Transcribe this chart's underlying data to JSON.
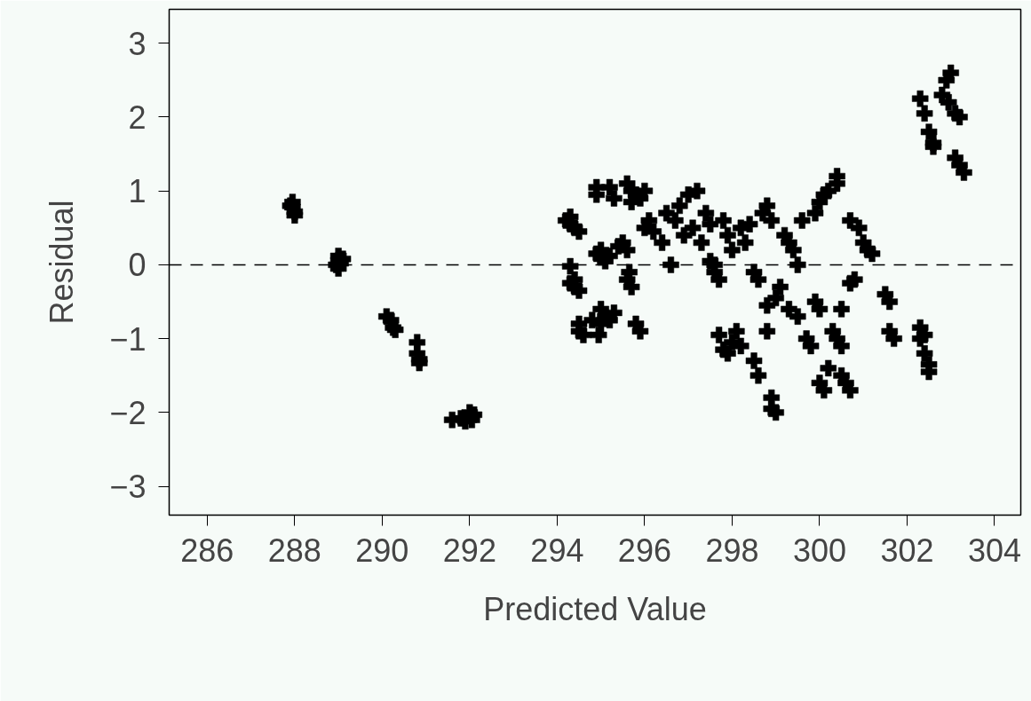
{
  "chart_data": {
    "type": "scatter",
    "xlabel": "Predicted Value",
    "ylabel": "Residual",
    "marker": "cross",
    "grid": false,
    "color": "#000000",
    "xlim": [
      285.13,
      304.6
    ],
    "ylim": [
      -3.39,
      3.46
    ],
    "xticks": [
      286,
      288,
      290,
      292,
      294,
      296,
      298,
      300,
      302,
      304
    ],
    "yticks": [
      {
        "value": -3,
        "label": "−3"
      },
      {
        "value": -2,
        "label": "−2"
      },
      {
        "value": -1,
        "label": "−1"
      },
      0,
      1,
      2,
      3
    ],
    "ref_lines": [
      {
        "axis": "y",
        "value": 0,
        "label": null,
        "line_style": "dashed",
        "color": "#000000"
      }
    ],
    "x": [
      287.95,
      287.95,
      288.0,
      288.0,
      287.9,
      289.0,
      289.0,
      289.05,
      288.95,
      289.0,
      289.1,
      290.1,
      290.2,
      290.25,
      290.3,
      290.8,
      290.8,
      290.85,
      290.85,
      291.6,
      291.8,
      292.0,
      292.05,
      292.1,
      291.9,
      294.2,
      294.3,
      294.4,
      294.5,
      294.3,
      294.3,
      294.4,
      294.5,
      294.4,
      294.3,
      294.5,
      294.5,
      294.6,
      294.8,
      294.9,
      294.9,
      295.2,
      295.3,
      294.9,
      295.0,
      295.1,
      295.2,
      295.0,
      295.0,
      295.1,
      295.2,
      295.3,
      294.95,
      295.0,
      295.6,
      295.7,
      295.65,
      295.8,
      295.9,
      295.5,
      295.6,
      295.4,
      295.7,
      295.8,
      295.9,
      296.0,
      295.7,
      295.6,
      296.0,
      296.1,
      296.2,
      296.4,
      296.5,
      296.6,
      296.7,
      296.8,
      296.9,
      297.0,
      297.1,
      297.2,
      297.3,
      297.4,
      297.5,
      297.6,
      297.5,
      297.7,
      297.6,
      297.8,
      297.9,
      298.0,
      298.2,
      298.3,
      298.4,
      298.5,
      298.6,
      298.7,
      298.8,
      298.9,
      297.7,
      297.8,
      297.9,
      298.0,
      298.1,
      298.2,
      298.5,
      298.6,
      298.8,
      298.9,
      298.9,
      299.0,
      298.8,
      299.0,
      299.1,
      299.2,
      299.3,
      299.4,
      299.5,
      299.3,
      299.5,
      299.6,
      299.7,
      299.8,
      299.9,
      300.0,
      299.9,
      300.0,
      300.1,
      300.2,
      300.4,
      300.4,
      300.0,
      300.1,
      300.2,
      300.3,
      300.4,
      300.5,
      300.5,
      300.6,
      300.7,
      300.5,
      300.7,
      300.8,
      300.7,
      300.9,
      301.0,
      301.1,
      301.2,
      301.5,
      301.6,
      301.6,
      301.7,
      302.3,
      302.4,
      302.4,
      302.5,
      302.5,
      302.3,
      302.3,
      302.4,
      302.5,
      302.6,
      302.6,
      302.8,
      302.9,
      303.0,
      302.95,
      303.1,
      303.2,
      303.1,
      303.2,
      303.3
    ],
    "values": [
      0.85,
      0.78,
      0.72,
      0.67,
      0.8,
      0.12,
      0.06,
      0.02,
      0.0,
      -0.05,
      0.08,
      -0.7,
      -0.75,
      -0.85,
      -0.88,
      -1.05,
      -1.2,
      -1.28,
      -1.33,
      -2.1,
      -2.08,
      -2.0,
      -2.1,
      -2.03,
      -2.12,
      0.6,
      0.55,
      0.5,
      0.45,
      0.65,
      -0.25,
      -0.3,
      -0.35,
      -0.2,
      -0.02,
      -0.9,
      -0.8,
      -0.95,
      -0.75,
      1.05,
      0.95,
      1.05,
      0.9,
      0.15,
      0.1,
      0.05,
      0.12,
      0.2,
      -0.6,
      -0.7,
      -0.75,
      -0.65,
      -0.95,
      -0.8,
      -0.2,
      -0.3,
      -0.1,
      -0.8,
      -0.9,
      0.3,
      0.2,
      0.25,
      1.0,
      0.95,
      0.9,
      1.0,
      0.85,
      1.1,
      0.5,
      0.6,
      0.45,
      0.3,
      0.7,
      0.0,
      0.6,
      0.8,
      0.4,
      0.95,
      0.5,
      1.0,
      0.3,
      0.7,
      0.55,
      0.0,
      0.05,
      -0.2,
      -0.1,
      0.6,
      0.4,
      0.2,
      0.5,
      0.3,
      0.55,
      -0.1,
      -0.2,
      0.7,
      0.8,
      0.6,
      -0.95,
      -1.15,
      -1.2,
      -1.05,
      -0.9,
      -1.1,
      -1.3,
      -1.5,
      -0.9,
      -1.8,
      -1.95,
      -2.0,
      -0.55,
      -0.45,
      -0.3,
      0.4,
      0.3,
      0.2,
      0.0,
      -0.6,
      -0.7,
      0.6,
      -1.0,
      -1.1,
      -0.5,
      -0.6,
      0.7,
      0.85,
      0.95,
      1.0,
      1.1,
      1.2,
      -1.6,
      -1.7,
      -1.4,
      -0.9,
      -1.0,
      -1.1,
      -1.5,
      -1.6,
      -1.7,
      -0.6,
      -0.25,
      -0.2,
      0.6,
      0.5,
      0.3,
      0.2,
      0.15,
      -0.4,
      -0.5,
      -0.9,
      -1.0,
      -0.85,
      -0.95,
      -1.2,
      -1.35,
      -1.45,
      -1.0,
      2.25,
      2.05,
      1.8,
      1.65,
      1.6,
      2.3,
      2.5,
      2.6,
      2.2,
      2.05,
      2.0,
      1.45,
      1.35,
      1.25
    ]
  }
}
